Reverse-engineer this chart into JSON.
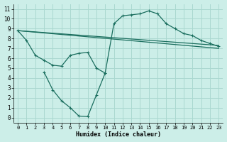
{
  "background_color": "#cceee8",
  "grid_color": "#aad8d0",
  "line_color": "#1a6e5e",
  "xlabel": "Humidex (Indice chaleur)",
  "xlim": [
    -0.5,
    23.5
  ],
  "ylim": [
    -0.5,
    11.5
  ],
  "xticks": [
    0,
    1,
    2,
    3,
    4,
    5,
    6,
    7,
    8,
    9,
    10,
    11,
    12,
    13,
    14,
    15,
    16,
    17,
    18,
    19,
    20,
    21,
    22,
    23
  ],
  "yticks": [
    0,
    1,
    2,
    3,
    4,
    5,
    6,
    7,
    8,
    9,
    10,
    11
  ],
  "line1_x": [
    0,
    1,
    2,
    3,
    4,
    5,
    6,
    7,
    8,
    9,
    10,
    11,
    12,
    13,
    14,
    15,
    16,
    17,
    18,
    19,
    20,
    21,
    22,
    23
  ],
  "line1_y": [
    8.8,
    7.8,
    6.3,
    5.8,
    5.3,
    5.2,
    6.3,
    6.5,
    6.6,
    5.0,
    4.5,
    9.5,
    10.3,
    10.4,
    10.5,
    10.8,
    10.5,
    9.5,
    9.0,
    8.5,
    8.3,
    7.8,
    7.5,
    7.2
  ],
  "line2_x": [
    0,
    23
  ],
  "line2_y": [
    8.8,
    7.3
  ],
  "line3_x": [
    0,
    23
  ],
  "line3_y": [
    8.8,
    7.0
  ],
  "line4_x": [
    3,
    4,
    5,
    6,
    7,
    8,
    9,
    10
  ],
  "line4_y": [
    4.6,
    2.8,
    1.7,
    1.0,
    0.15,
    0.1,
    2.3,
    4.5
  ],
  "marker": "+"
}
